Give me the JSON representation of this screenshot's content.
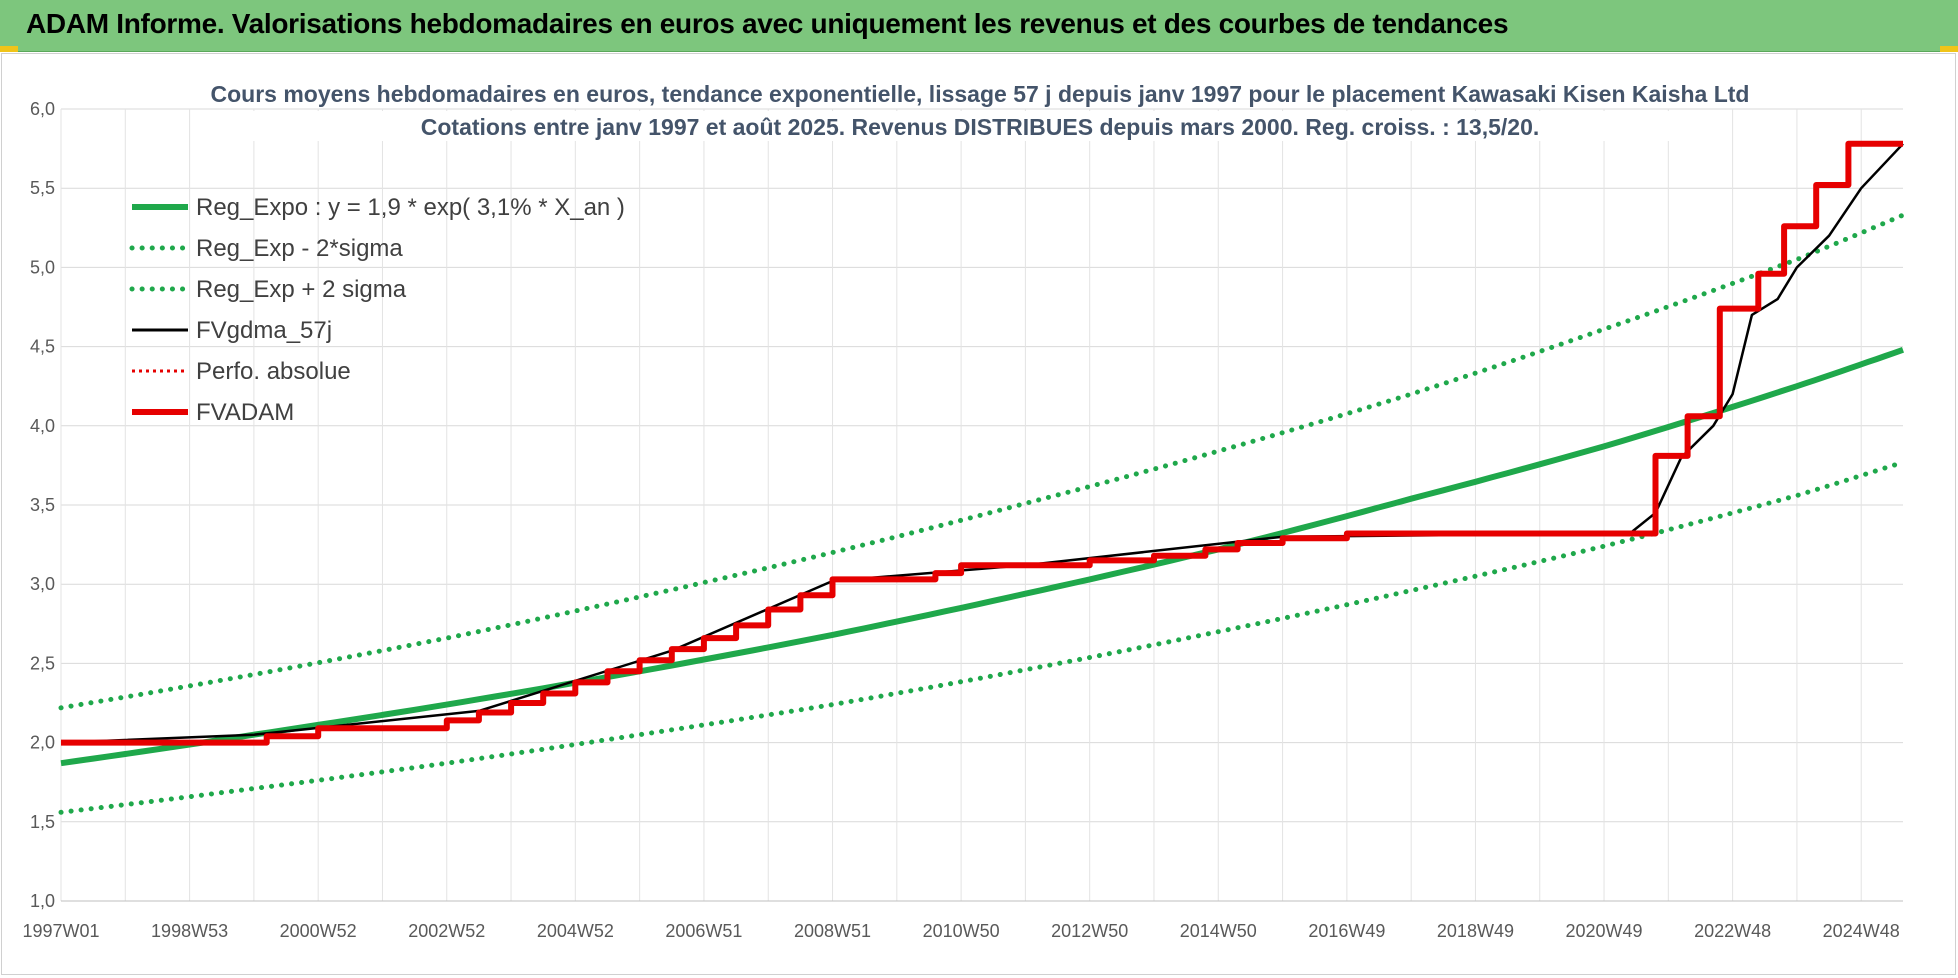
{
  "header": {
    "title": "ADAM Informe. Valorisations hebdomadaires en euros avec uniquement les revenus et des courbes de tendances"
  },
  "colors": {
    "banner": "#7dc67d",
    "trend": "#1fa84b",
    "band": "#1fa84b",
    "smoothed": "#000000",
    "perf": "#e60000",
    "fvadam": "#e60000"
  },
  "chart_data": {
    "type": "line",
    "title_lines": [
      "Cours moyens hebdomadaires en euros, tendance exponentielle, lissage 57 j depuis janv 1997 pour le placement Kawasaki Kisen Kaisha Ltd",
      "Cotations entre janv 1997 et août 2025.  Revenus DISTRIBUES depuis mars 2000. Reg. croiss. : 13,5/20."
    ],
    "xlabel": "",
    "ylabel": "",
    "x_range": [
      1997.0,
      2025.65
    ],
    "ylim": [
      1.0,
      6.0
    ],
    "y_ticks": [
      "1,0",
      "1,5",
      "2,0",
      "2,5",
      "3,0",
      "3,5",
      "4,0",
      "4,5",
      "5,0",
      "5,5",
      "6,0"
    ],
    "x_ticks": [
      {
        "label": "1997W01",
        "x": 1997.0
      },
      {
        "label": "1998W53",
        "x": 1999.0
      },
      {
        "label": "2000W52",
        "x": 2001.0
      },
      {
        "label": "2002W52",
        "x": 2003.0
      },
      {
        "label": "2004W52",
        "x": 2005.0
      },
      {
        "label": "2006W51",
        "x": 2007.0
      },
      {
        "label": "2008W51",
        "x": 2009.0
      },
      {
        "label": "2010W50",
        "x": 2011.0
      },
      {
        "label": "2012W50",
        "x": 2013.0
      },
      {
        "label": "2014W50",
        "x": 2015.0
      },
      {
        "label": "2016W49",
        "x": 2017.0
      },
      {
        "label": "2018W49",
        "x": 2019.0
      },
      {
        "label": "2020W49",
        "x": 2021.0
      },
      {
        "label": "2022W48",
        "x": 2023.0
      },
      {
        "label": "2024W48",
        "x": 2025.0
      }
    ],
    "grid": true,
    "legend_position": "top-left",
    "legend": [
      {
        "label": "Reg_Expo : y = 1,9 * exp( 3,1% *  X_an )",
        "style": "solid-thick",
        "color": "#1fa84b"
      },
      {
        "label": "Reg_Exp - 2*sigma",
        "style": "dotted",
        "color": "#1fa84b"
      },
      {
        "label": "Reg_Exp + 2 sigma",
        "style": "dotted",
        "color": "#1fa84b"
      },
      {
        "label": "FVgdma_57j",
        "style": "solid",
        "color": "#000000"
      },
      {
        "label": "Perfo. absolue",
        "style": "dotted-thin",
        "color": "#e60000"
      },
      {
        "label": "FVADAM",
        "style": "solid-thick",
        "color": "#e60000"
      }
    ],
    "series": [
      {
        "name": "Reg_Expo : y = 1,9 * exp( 3,1% *  X_an )",
        "x": [
          1997.0,
          2000.0,
          2003.0,
          2006.0,
          2009.0,
          2012.0,
          2015.0,
          2018.0,
          2021.0,
          2024.0,
          2025.65
        ],
        "y": [
          1.87,
          2.05,
          2.24,
          2.45,
          2.68,
          2.94,
          3.22,
          3.54,
          3.87,
          4.25,
          4.48
        ]
      },
      {
        "name": "Reg_Exp - 2*sigma",
        "x": [
          1997.0,
          2000.0,
          2003.0,
          2006.0,
          2009.0,
          2012.0,
          2015.0,
          2018.0,
          2021.0,
          2024.0,
          2025.65
        ],
        "y": [
          1.56,
          1.71,
          1.87,
          2.05,
          2.24,
          2.46,
          2.7,
          2.96,
          3.24,
          3.56,
          3.77
        ]
      },
      {
        "name": "Reg_Exp + 2 sigma",
        "x": [
          1997.0,
          2000.0,
          2003.0,
          2006.0,
          2009.0,
          2012.0,
          2015.0,
          2018.0,
          2021.0,
          2024.0,
          2025.65
        ],
        "y": [
          2.22,
          2.43,
          2.66,
          2.92,
          3.2,
          3.51,
          3.84,
          4.2,
          4.61,
          5.05,
          5.33
        ]
      },
      {
        "name": "FVgdma_57j",
        "x": [
          1997.0,
          2000.0,
          2003.5,
          2006.5,
          2009.0,
          2012.0,
          2016.0,
          2021.4,
          2021.8,
          2022.2,
          2022.7,
          2023.0,
          2023.3,
          2023.7,
          2024.0,
          2024.5,
          2025.0,
          2025.65
        ],
        "y": [
          2.0,
          2.05,
          2.2,
          2.58,
          3.02,
          3.12,
          3.3,
          3.32,
          3.45,
          3.8,
          4.0,
          4.2,
          4.7,
          4.8,
          5.0,
          5.2,
          5.5,
          5.78
        ]
      },
      {
        "name": "FVADAM",
        "x": [
          1997.0,
          1999.0,
          2000.2,
          2000.2,
          2001.0,
          2001.0,
          2003.0,
          2003.0,
          2003.5,
          2003.5,
          2004.0,
          2004.0,
          2004.5,
          2004.5,
          2005.0,
          2005.0,
          2005.5,
          2005.5,
          2006.0,
          2006.0,
          2006.5,
          2006.5,
          2007.0,
          2007.0,
          2007.5,
          2007.5,
          2008.0,
          2008.0,
          2008.5,
          2008.5,
          2009.0,
          2009.0,
          2010.6,
          2010.6,
          2011.0,
          2011.0,
          2013.0,
          2013.0,
          2014.0,
          2014.0,
          2014.8,
          2014.8,
          2015.3,
          2015.3,
          2016.0,
          2016.0,
          2017.0,
          2017.0,
          2021.8,
          2021.8,
          2022.3,
          2022.3,
          2022.8,
          2022.8,
          2023.4,
          2023.4,
          2023.8,
          2023.8,
          2024.3,
          2024.3,
          2024.8,
          2024.8,
          2025.3,
          2025.3,
          2025.65
        ],
        "y": [
          2.0,
          2.0,
          2.0,
          2.04,
          2.04,
          2.09,
          2.09,
          2.14,
          2.14,
          2.19,
          2.19,
          2.25,
          2.25,
          2.31,
          2.31,
          2.38,
          2.38,
          2.45,
          2.45,
          2.52,
          2.52,
          2.59,
          2.59,
          2.66,
          2.66,
          2.74,
          2.74,
          2.84,
          2.84,
          2.93,
          2.93,
          3.03,
          3.03,
          3.07,
          3.07,
          3.12,
          3.12,
          3.15,
          3.15,
          3.18,
          3.18,
          3.22,
          3.22,
          3.26,
          3.26,
          3.29,
          3.29,
          3.32,
          3.32,
          3.81,
          3.81,
          4.06,
          4.06,
          4.74,
          4.74,
          4.96,
          4.96,
          5.26,
          5.26,
          5.52,
          5.52,
          5.78,
          5.78,
          5.78,
          5.78
        ]
      }
    ]
  }
}
